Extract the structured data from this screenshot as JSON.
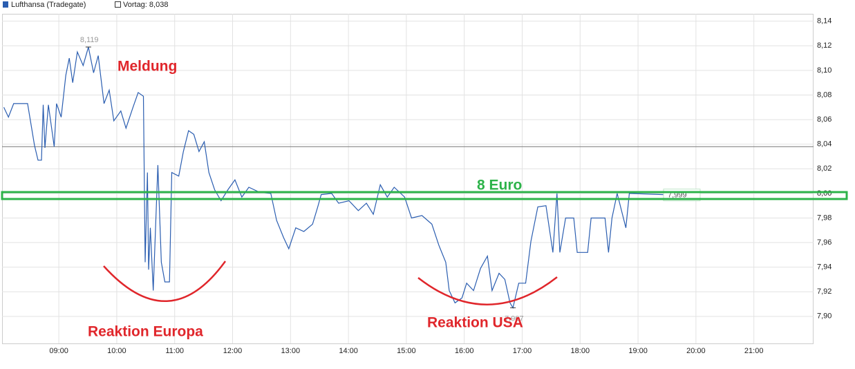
{
  "chart_data": {
    "type": "line",
    "series": [
      {
        "name": "Lufthansa (Tradegate)",
        "color": "#2a5db0",
        "x": [
          8.05,
          8.13,
          8.22,
          8.46,
          8.58,
          8.64,
          8.7,
          8.73,
          8.76,
          8.82,
          8.92,
          8.96,
          9.04,
          9.12,
          9.18,
          9.24,
          9.32,
          9.42,
          9.51,
          9.6,
          9.68,
          9.78,
          9.87,
          9.95,
          10.07,
          10.16,
          10.28,
          10.37,
          10.46,
          10.49,
          10.53,
          10.55,
          10.58,
          10.63,
          10.71,
          10.77,
          10.83,
          10.91,
          10.95,
          11.07,
          11.15,
          11.24,
          11.33,
          11.42,
          11.51,
          11.59,
          11.69,
          11.8,
          11.92,
          12.04,
          12.16,
          12.28,
          12.46,
          12.66,
          12.76,
          12.88,
          12.97,
          13.09,
          13.23,
          13.38,
          13.47,
          13.53,
          13.71,
          13.83,
          14.01,
          14.17,
          14.31,
          14.43,
          14.55,
          14.67,
          14.79,
          14.97,
          15.09,
          15.27,
          15.44,
          15.56,
          15.68,
          15.74,
          15.84,
          15.96,
          16.04,
          16.16,
          16.28,
          16.4,
          16.48,
          16.6,
          16.7,
          16.79,
          16.84,
          16.94,
          17.06,
          17.15,
          17.27,
          17.41,
          17.53,
          17.6,
          17.65,
          17.75,
          17.89,
          17.95,
          18.13,
          18.19,
          18.43,
          18.49,
          18.55,
          18.64,
          18.79,
          18.85,
          19.44
        ],
        "values": [
          8.07,
          8.062,
          8.073,
          8.073,
          8.039,
          8.027,
          8.027,
          8.072,
          8.037,
          8.072,
          8.038,
          8.073,
          8.062,
          8.096,
          8.11,
          8.09,
          8.115,
          8.104,
          8.119,
          8.098,
          8.112,
          8.073,
          8.084,
          8.059,
          8.067,
          8.053,
          8.07,
          8.082,
          8.079,
          7.944,
          8.017,
          7.938,
          7.972,
          7.921,
          8.023,
          7.944,
          7.928,
          7.928,
          8.017,
          8.014,
          8.034,
          8.051,
          8.048,
          8.034,
          8.042,
          8.017,
          8.003,
          7.994,
          8.003,
          8.011,
          7.997,
          8.005,
          8.001,
          8.0,
          7.978,
          7.964,
          7.955,
          7.972,
          7.969,
          7.975,
          7.989,
          7.999,
          8.0,
          7.992,
          7.994,
          7.986,
          7.992,
          7.983,
          8.007,
          7.997,
          8.005,
          7.997,
          7.98,
          7.982,
          7.975,
          7.958,
          7.944,
          7.921,
          7.911,
          7.915,
          7.927,
          7.921,
          7.939,
          7.949,
          7.921,
          7.935,
          7.93,
          7.911,
          7.907,
          7.927,
          7.927,
          7.961,
          7.989,
          7.99,
          7.952,
          8.0,
          7.952,
          7.98,
          7.98,
          7.952,
          7.952,
          7.98,
          7.98,
          7.952,
          7.98,
          8.0,
          7.972,
          8.0,
          7.999
        ]
      }
    ],
    "previous_close": {
      "value": 8.038,
      "label": "Vortag: 8,038"
    },
    "value_annotations": [
      {
        "x": 9.51,
        "value": 8.119,
        "label": "8,119"
      },
      {
        "x": 16.84,
        "value": 7.907,
        "label": "7,907"
      },
      {
        "x": 19.44,
        "value": 7.999,
        "label": "7,999"
      }
    ],
    "text_annotations": [
      "Meldung",
      "Reaktion Europa",
      "Reaktion USA",
      "8 Euro"
    ],
    "xlim": [
      8.02,
      22.03
    ],
    "ylim": [
      7.878,
      8.146
    ],
    "xticks": [
      {
        "value": 9,
        "label": "09:00"
      },
      {
        "value": 10,
        "label": "10:00"
      },
      {
        "value": 11,
        "label": "11:00"
      },
      {
        "value": 12,
        "label": "12:00"
      },
      {
        "value": 13,
        "label": "13:00"
      },
      {
        "value": 14,
        "label": "14:00"
      },
      {
        "value": 15,
        "label": "15:00"
      },
      {
        "value": 16,
        "label": "16:00"
      },
      {
        "value": 17,
        "label": "17:00"
      },
      {
        "value": 18,
        "label": "18:00"
      },
      {
        "value": 19,
        "label": "19:00"
      },
      {
        "value": 20,
        "label": "20:00"
      },
      {
        "value": 21,
        "label": "21:00"
      }
    ],
    "yticks": [
      {
        "value": 7.9,
        "label": "7,90"
      },
      {
        "value": 7.92,
        "label": "7,92"
      },
      {
        "value": 7.94,
        "label": "7,94"
      },
      {
        "value": 7.96,
        "label": "7,96"
      },
      {
        "value": 7.98,
        "label": "7,98"
      },
      {
        "value": 8.0,
        "label": "8,00"
      },
      {
        "value": 8.02,
        "label": "8,02"
      },
      {
        "value": 8.04,
        "label": "8,04"
      },
      {
        "value": 8.06,
        "label": "8,06"
      },
      {
        "value": 8.08,
        "label": "8,08"
      },
      {
        "value": 8.1,
        "label": "8,10"
      },
      {
        "value": 8.12,
        "label": "8,12"
      },
      {
        "value": 8.14,
        "label": "8,14"
      }
    ],
    "grid": true
  }
}
